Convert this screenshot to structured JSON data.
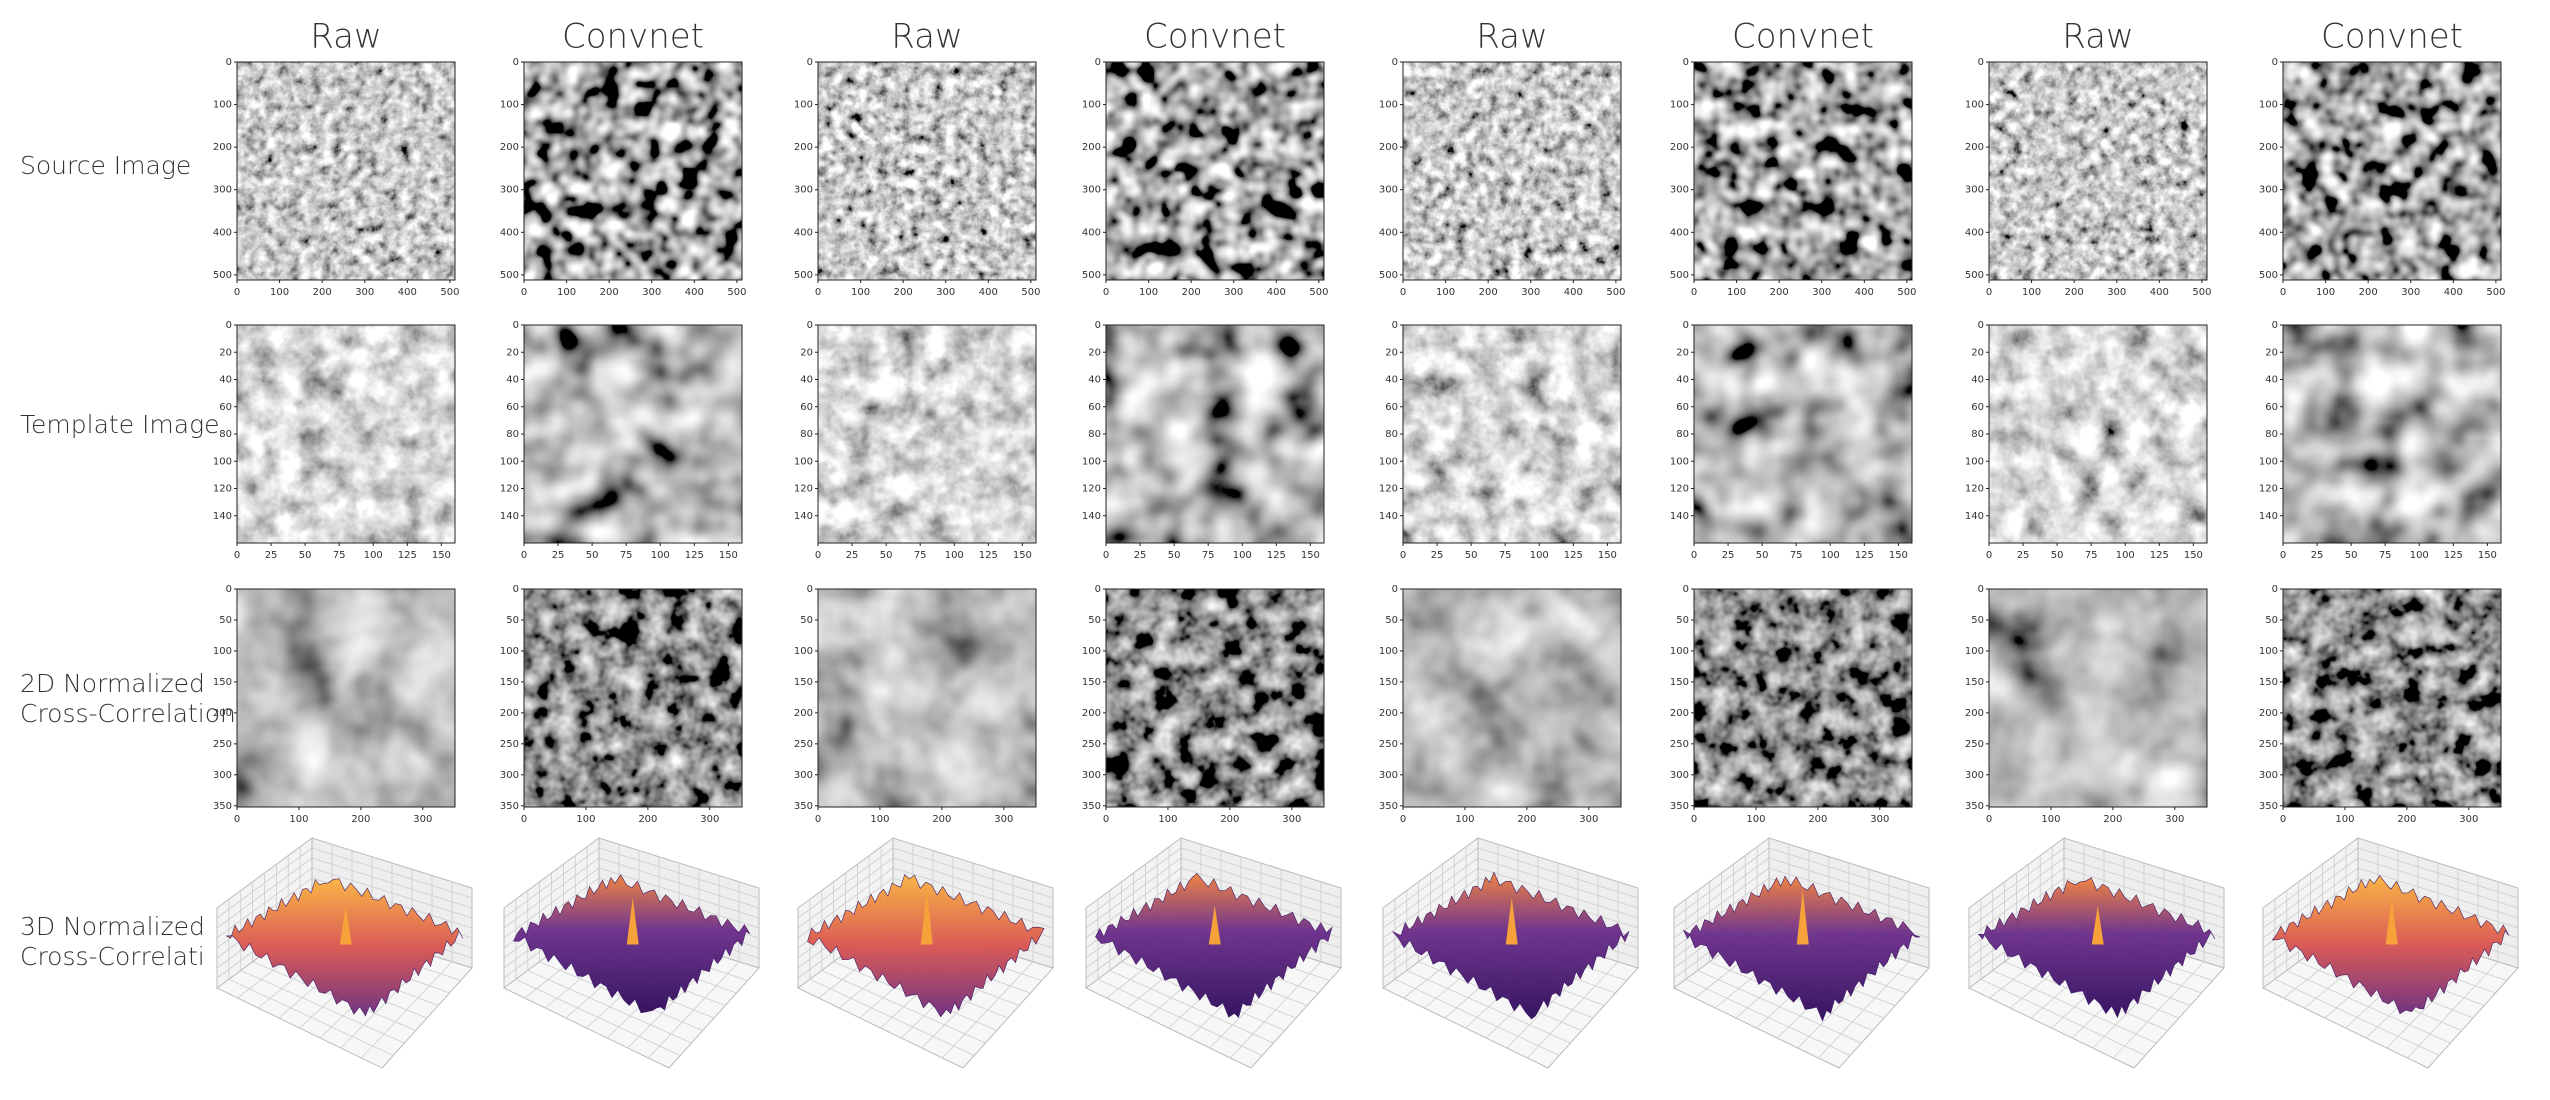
{
  "columns": [
    "Raw",
    "Convnet",
    "Raw",
    "Convnet",
    "Raw",
    "Convnet",
    "Raw",
    "Convnet"
  ],
  "rows": [
    {
      "label": [
        "Source Image"
      ],
      "extent": [
        0,
        512
      ],
      "xticks": [
        0,
        100,
        200,
        300,
        400,
        500
      ],
      "yticks": [
        0,
        100,
        200,
        300,
        400,
        500
      ]
    },
    {
      "label": [
        "Template Image"
      ],
      "extent": [
        0,
        160
      ],
      "xticks": [
        0,
        25,
        50,
        75,
        100,
        125,
        150
      ],
      "yticks": [
        0,
        20,
        40,
        60,
        80,
        100,
        120,
        140
      ]
    },
    {
      "label": [
        "2D Normalized",
        "Cross-Correlation"
      ],
      "extent": [
        0,
        352
      ],
      "xticks": [
        0,
        100,
        200,
        300
      ],
      "yticks": [
        0,
        50,
        100,
        150,
        200,
        250,
        300,
        350
      ]
    },
    {
      "label": [
        "3D Normalized",
        "Cross-Correlati"
      ]
    }
  ]
}
